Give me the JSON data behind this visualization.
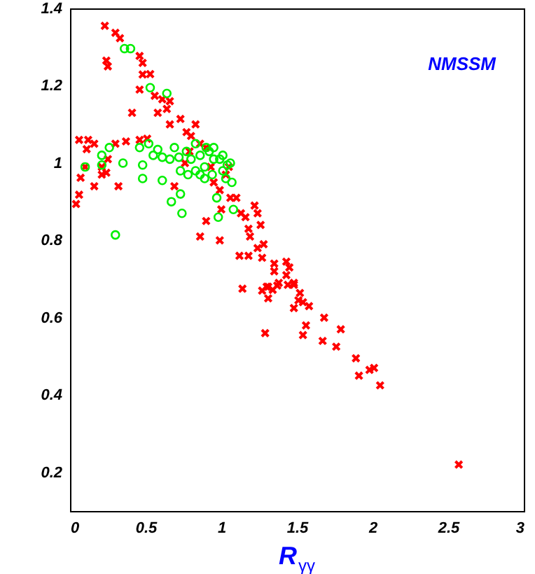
{
  "chart_data": {
    "type": "scatter",
    "xlabel": "R$_{γγ}$",
    "annotations": [
      "NMSSM"
    ],
    "xlim": [
      0,
      3
    ],
    "ylim": [
      0.1,
      1.4
    ],
    "xticks": [
      0,
      0.5,
      1,
      1.5,
      2,
      2.5,
      3
    ],
    "yticks": [
      0.2,
      0.4,
      0.6,
      0.8,
      1,
      1.2,
      1.4
    ],
    "grid": false,
    "series": [
      {
        "color": "#ff0000",
        "marker": "cross",
        "x": [
          0.23,
          0.3,
          0.33,
          0.24,
          0.25,
          0.46,
          0.48,
          0.48,
          0.53,
          0.46,
          0.41,
          0.56,
          0.61,
          0.66,
          0.64,
          0.58,
          0.66,
          0.73,
          0.77,
          0.8,
          0.83,
          0.86,
          0.9,
          0.04,
          0.06,
          0.07,
          0.1,
          0.06,
          0.11,
          0.12,
          0.16,
          0.16,
          0.21,
          0.21,
          0.24,
          0.25,
          0.3,
          0.32,
          0.37,
          0.46,
          0.51,
          0.69,
          0.86,
          0.9,
          0.99,
          1.0,
          1.06,
          1.1,
          1.13,
          1.16,
          1.18,
          1.22,
          1.24,
          1.19,
          1.26,
          1.24,
          1.28,
          1.12,
          1.18,
          1.27,
          1.35,
          1.43,
          1.45,
          1.35,
          1.43,
          1.38,
          1.48,
          1.31,
          1.05,
          1.03,
          0.95,
          0.99,
          0.93,
          0.76,
          0.79,
          1.14,
          1.27,
          1.3,
          1.34,
          1.37,
          1.44,
          1.48,
          1.52,
          1.31,
          1.51,
          1.54,
          1.48,
          1.58,
          1.29,
          1.56,
          1.54,
          1.68,
          1.79,
          1.67,
          1.76,
          1.89,
          1.91,
          1.98,
          2.01,
          2.05,
          2.57
        ],
        "values": [
          1.355,
          1.337,
          1.323,
          1.265,
          1.25,
          1.277,
          1.259,
          1.229,
          1.23,
          1.19,
          1.13,
          1.174,
          1.165,
          1.16,
          1.14,
          1.13,
          1.1,
          1.114,
          1.08,
          1.07,
          1.1,
          1.05,
          1.04,
          0.894,
          0.918,
          0.962,
          0.99,
          1.06,
          1.036,
          1.06,
          1.05,
          0.94,
          0.97,
          0.99,
          0.975,
          1.01,
          1.05,
          0.94,
          1.056,
          1.06,
          1.063,
          0.94,
          0.81,
          0.85,
          0.8,
          0.88,
          0.91,
          0.91,
          0.87,
          0.86,
          0.83,
          0.89,
          0.87,
          0.81,
          0.84,
          0.78,
          0.79,
          0.76,
          0.76,
          0.755,
          0.74,
          0.745,
          0.73,
          0.72,
          0.71,
          0.69,
          0.69,
          0.68,
          0.99,
          0.97,
          0.95,
          0.93,
          0.99,
          1.0,
          1.03,
          0.675,
          0.67,
          0.68,
          0.672,
          0.683,
          0.685,
          0.685,
          0.664,
          0.65,
          0.645,
          0.64,
          0.625,
          0.63,
          0.56,
          0.58,
          0.555,
          0.6,
          0.57,
          0.54,
          0.525,
          0.495,
          0.45,
          0.465,
          0.47,
          0.425,
          0.22
        ]
      },
      {
        "color": "#00ee00",
        "marker": "circle",
        "x": [
          0.36,
          0.4,
          0.53,
          0.64,
          0.1,
          0.21,
          0.21,
          0.26,
          0.35,
          0.3,
          0.46,
          0.48,
          0.48,
          0.52,
          0.55,
          0.58,
          0.61,
          0.61,
          0.66,
          0.67,
          0.69,
          0.72,
          0.73,
          0.74,
          0.73,
          0.77,
          0.8,
          0.83,
          0.86,
          0.89,
          0.92,
          0.94,
          0.95,
          0.97,
          0.98,
          0.99,
          1.01,
          1.03,
          1.04,
          1.07,
          1.06,
          1.08,
          0.89,
          0.86,
          0.78,
          0.83,
          0.95,
          0.9,
          1.01
        ],
        "values": [
          1.296,
          1.296,
          1.195,
          1.18,
          0.99,
          1.02,
          0.995,
          1.04,
          1.0,
          0.814,
          1.04,
          0.995,
          0.96,
          1.05,
          1.02,
          1.035,
          1.015,
          0.955,
          1.01,
          0.9,
          1.04,
          1.015,
          0.92,
          0.87,
          0.98,
          1.03,
          1.01,
          1.05,
          1.02,
          0.99,
          1.03,
          0.97,
          1.01,
          0.91,
          0.86,
          1.01,
          0.98,
          0.96,
          0.995,
          0.95,
          1.0,
          0.88,
          0.96,
          0.97,
          0.97,
          0.98,
          1.04,
          1.04,
          1.02
        ]
      }
    ]
  }
}
